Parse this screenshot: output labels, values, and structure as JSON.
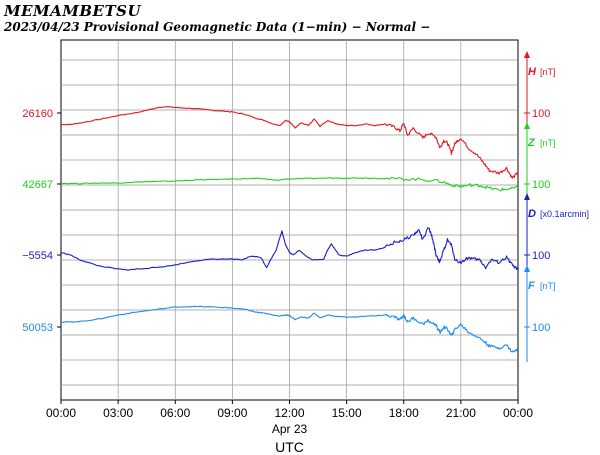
{
  "header": {
    "station": "MEMAMBETSU",
    "subtitle": "2023/04/23  Provisional Geomagnetic Data (1−min)  − Normal −"
  },
  "chart_data": {
    "type": "line",
    "x_ticks": [
      "00:00",
      "03:00",
      "06:00",
      "09:00",
      "12:00",
      "15:00",
      "18:00",
      "21:00",
      "00:00"
    ],
    "x_date_label": "Apr 23",
    "x_axis_title": "UTC",
    "xlim_hours": [
      0,
      24
    ],
    "grid": true,
    "series": [
      {
        "name": "H",
        "unit": "[nT]",
        "scale_label": "100",
        "base_value": "26160",
        "color": "#e8141e",
        "points": [
          [
            0,
            -23
          ],
          [
            0.5,
            -23
          ],
          [
            1,
            -20
          ],
          [
            2,
            -13
          ],
          [
            3,
            -5
          ],
          [
            4,
            1
          ],
          [
            5,
            10
          ],
          [
            5.5,
            13
          ],
          [
            6,
            11
          ],
          [
            7,
            9
          ],
          [
            8,
            5
          ],
          [
            8.5,
            4
          ],
          [
            9,
            2
          ],
          [
            9.7,
            -3
          ],
          [
            10.2,
            -10
          ],
          [
            10.7,
            -15
          ],
          [
            11,
            -20
          ],
          [
            11.5,
            -25
          ],
          [
            11.8,
            -15
          ],
          [
            12,
            -17
          ],
          [
            12.3,
            -30
          ],
          [
            12.6,
            -20
          ],
          [
            13,
            -25
          ],
          [
            13.3,
            -12
          ],
          [
            13.6,
            -27
          ],
          [
            14,
            -15
          ],
          [
            14.5,
            -22
          ],
          [
            15,
            -25
          ],
          [
            15.5,
            -25
          ],
          [
            16,
            -22
          ],
          [
            16.5,
            -25
          ],
          [
            17,
            -22
          ],
          [
            17.5,
            -28
          ],
          [
            17.8,
            -36
          ],
          [
            18,
            -20
          ],
          [
            18.2,
            -45
          ],
          [
            18.5,
            -30
          ],
          [
            19,
            -50
          ],
          [
            19.3,
            -40
          ],
          [
            19.7,
            -48
          ],
          [
            19.9,
            -70
          ],
          [
            20.1,
            -55
          ],
          [
            20.3,
            -60
          ],
          [
            20.5,
            -80
          ],
          [
            20.7,
            -60
          ],
          [
            21,
            -50
          ],
          [
            21.4,
            -70
          ],
          [
            21.8,
            -82
          ],
          [
            22.2,
            -100
          ],
          [
            22.5,
            -115
          ],
          [
            23,
            -120
          ],
          [
            23.4,
            -110
          ],
          [
            23.7,
            -130
          ],
          [
            24,
            -120
          ]
        ]
      },
      {
        "name": "Z",
        "unit": "[nT]",
        "scale_label": "100",
        "base_value": "42667",
        "color": "#1ed21e",
        "points": [
          [
            0,
            1
          ],
          [
            1,
            1
          ],
          [
            2,
            2
          ],
          [
            3,
            2
          ],
          [
            4,
            4
          ],
          [
            5,
            5
          ],
          [
            6,
            6
          ],
          [
            7,
            8
          ],
          [
            8,
            9
          ],
          [
            9,
            10
          ],
          [
            10,
            11
          ],
          [
            10.5,
            11
          ],
          [
            11,
            9
          ],
          [
            11.4,
            7
          ],
          [
            11.8,
            10
          ],
          [
            12,
            10
          ],
          [
            13,
            11
          ],
          [
            14,
            12
          ],
          [
            15,
            12
          ],
          [
            16,
            12
          ],
          [
            17,
            11
          ],
          [
            18,
            10
          ],
          [
            19,
            9
          ],
          [
            20,
            5
          ],
          [
            20.5,
            -2
          ],
          [
            21,
            -5
          ],
          [
            21.5,
            -2
          ],
          [
            22,
            -3
          ],
          [
            22.5,
            -8
          ],
          [
            23,
            -12
          ],
          [
            23.5,
            -10
          ],
          [
            24,
            -7
          ]
        ]
      },
      {
        "name": "D",
        "unit": "[x0.1arcmin]",
        "scale_label": "100",
        "base_value": "−5554",
        "color": "#1a1ec8",
        "points": [
          [
            0,
            5
          ],
          [
            0.5,
            0
          ],
          [
            1,
            -10
          ],
          [
            2,
            -22
          ],
          [
            3,
            -28
          ],
          [
            3.5,
            -30
          ],
          [
            4,
            -28
          ],
          [
            5,
            -25
          ],
          [
            6,
            -20
          ],
          [
            7,
            -12
          ],
          [
            8,
            -8
          ],
          [
            9,
            -8
          ],
          [
            9.5,
            -10
          ],
          [
            10,
            -2
          ],
          [
            10.5,
            -5
          ],
          [
            10.8,
            -25
          ],
          [
            11,
            -10
          ],
          [
            11.3,
            10
          ],
          [
            11.6,
            48
          ],
          [
            11.8,
            20
          ],
          [
            12,
            5
          ],
          [
            12.2,
            0
          ],
          [
            12.5,
            10
          ],
          [
            12.8,
            0
          ],
          [
            13.2,
            -10
          ],
          [
            13.8,
            -8
          ],
          [
            14,
            10
          ],
          [
            14.2,
            22
          ],
          [
            14.6,
            0
          ],
          [
            15,
            -2
          ],
          [
            15.5,
            5
          ],
          [
            16,
            10
          ],
          [
            16.5,
            10
          ],
          [
            17,
            15
          ],
          [
            17.5,
            25
          ],
          [
            18,
            30
          ],
          [
            18.5,
            40
          ],
          [
            18.8,
            50
          ],
          [
            19,
            30
          ],
          [
            19.3,
            55
          ],
          [
            19.5,
            35
          ],
          [
            19.7,
            0
          ],
          [
            19.9,
            -15
          ],
          [
            20.1,
            10
          ],
          [
            20.3,
            30
          ],
          [
            20.5,
            20
          ],
          [
            20.7,
            -10
          ],
          [
            21,
            -15
          ],
          [
            21.4,
            -5
          ],
          [
            21.7,
            -8
          ],
          [
            22,
            -10
          ],
          [
            22.3,
            -25
          ],
          [
            22.6,
            -10
          ],
          [
            23,
            -15
          ],
          [
            23.4,
            -5
          ],
          [
            23.7,
            -20
          ],
          [
            24,
            -30
          ]
        ]
      },
      {
        "name": "F",
        "unit": "[nT]",
        "scale_label": "100",
        "base_value": "50053",
        "color": "#1e8cf0",
        "points": [
          [
            0,
            10
          ],
          [
            0.5,
            10
          ],
          [
            1,
            11
          ],
          [
            2,
            16
          ],
          [
            3,
            24
          ],
          [
            4,
            30
          ],
          [
            5,
            35
          ],
          [
            6,
            40
          ],
          [
            7,
            41
          ],
          [
            8,
            40
          ],
          [
            9,
            38
          ],
          [
            9.7,
            35
          ],
          [
            10.2,
            30
          ],
          [
            10.6,
            28
          ],
          [
            11,
            25
          ],
          [
            11.5,
            22
          ],
          [
            11.8,
            24
          ],
          [
            12,
            23
          ],
          [
            12.3,
            15
          ],
          [
            12.6,
            20
          ],
          [
            13,
            18
          ],
          [
            13.3,
            28
          ],
          [
            13.6,
            18
          ],
          [
            14,
            24
          ],
          [
            14.5,
            21
          ],
          [
            15,
            20
          ],
          [
            15.5,
            20
          ],
          [
            16,
            22
          ],
          [
            16.5,
            22
          ],
          [
            17,
            24
          ],
          [
            17.5,
            20
          ],
          [
            17.8,
            14
          ],
          [
            18,
            24
          ],
          [
            18.2,
            10
          ],
          [
            18.5,
            18
          ],
          [
            19,
            6
          ],
          [
            19.3,
            12
          ],
          [
            19.7,
            4
          ],
          [
            19.9,
            -12
          ],
          [
            20.1,
            0
          ],
          [
            20.3,
            -4
          ],
          [
            20.5,
            -18
          ],
          [
            20.7,
            -4
          ],
          [
            21,
            5
          ],
          [
            21.4,
            -10
          ],
          [
            21.8,
            -18
          ],
          [
            22.2,
            -28
          ],
          [
            22.5,
            -38
          ],
          [
            23,
            -42
          ],
          [
            23.4,
            -36
          ],
          [
            23.7,
            -50
          ],
          [
            24,
            -45
          ]
        ]
      }
    ]
  }
}
